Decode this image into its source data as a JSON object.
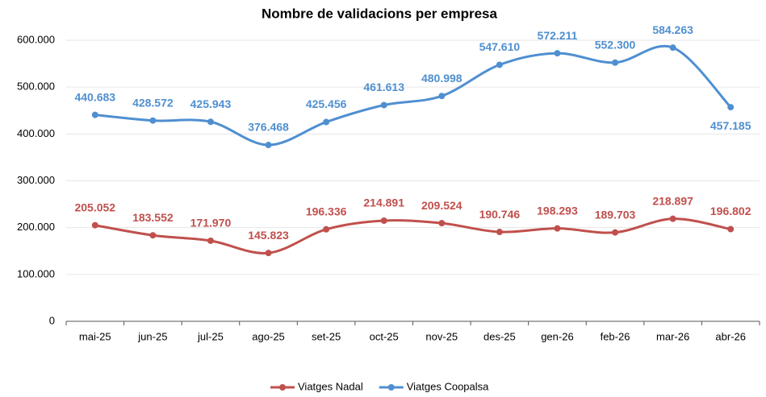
{
  "chart_data": {
    "type": "line",
    "title": "Nombre de validacions per empresa",
    "categories": [
      "mai-25",
      "jun-25",
      "jul-25",
      "ago-25",
      "set-25",
      "oct-25",
      "nov-25",
      "des-25",
      "gen-26",
      "feb-26",
      "mar-26",
      "abr-26"
    ],
    "series": [
      {
        "name": "Viatges Nadal",
        "color": "#c0504d",
        "values": [
          205052,
          183552,
          171970,
          145823,
          196336,
          214891,
          209524,
          190746,
          198293,
          189703,
          218897,
          196802
        ],
        "value_labels": [
          "205.052",
          "183.552",
          "171.970",
          "145.823",
          "196.336",
          "214.891",
          "209.524",
          "190.746",
          "198.293",
          "189.703",
          "218.897",
          "196.802"
        ]
      },
      {
        "name": "Viatges Coopalsa",
        "color": "#4f8fd0",
        "values": [
          440683,
          428572,
          425943,
          376468,
          425456,
          461613,
          480998,
          547610,
          572211,
          552300,
          584263,
          457185
        ],
        "value_labels": [
          "440.683",
          "428.572",
          "425.943",
          "376.468",
          "425.456",
          "461.613",
          "480.998",
          "547.610",
          "572.211",
          "552.300",
          "584.263",
          "457.185"
        ]
      }
    ],
    "ylim": [
      0,
      600000
    ],
    "yticks": [
      0,
      {
        "value": 100000,
        "label": "100.000"
      },
      {
        "value": 200000,
        "label": "200.000"
      },
      {
        "value": 300000,
        "label": "300.000"
      },
      {
        "value": 400000,
        "label": "400.000"
      },
      {
        "value": 500000,
        "label": "500.000"
      },
      {
        "value": 600000,
        "label": "600.000"
      }
    ],
    "grid": true,
    "legend": "bottom",
    "smooth": true
  }
}
